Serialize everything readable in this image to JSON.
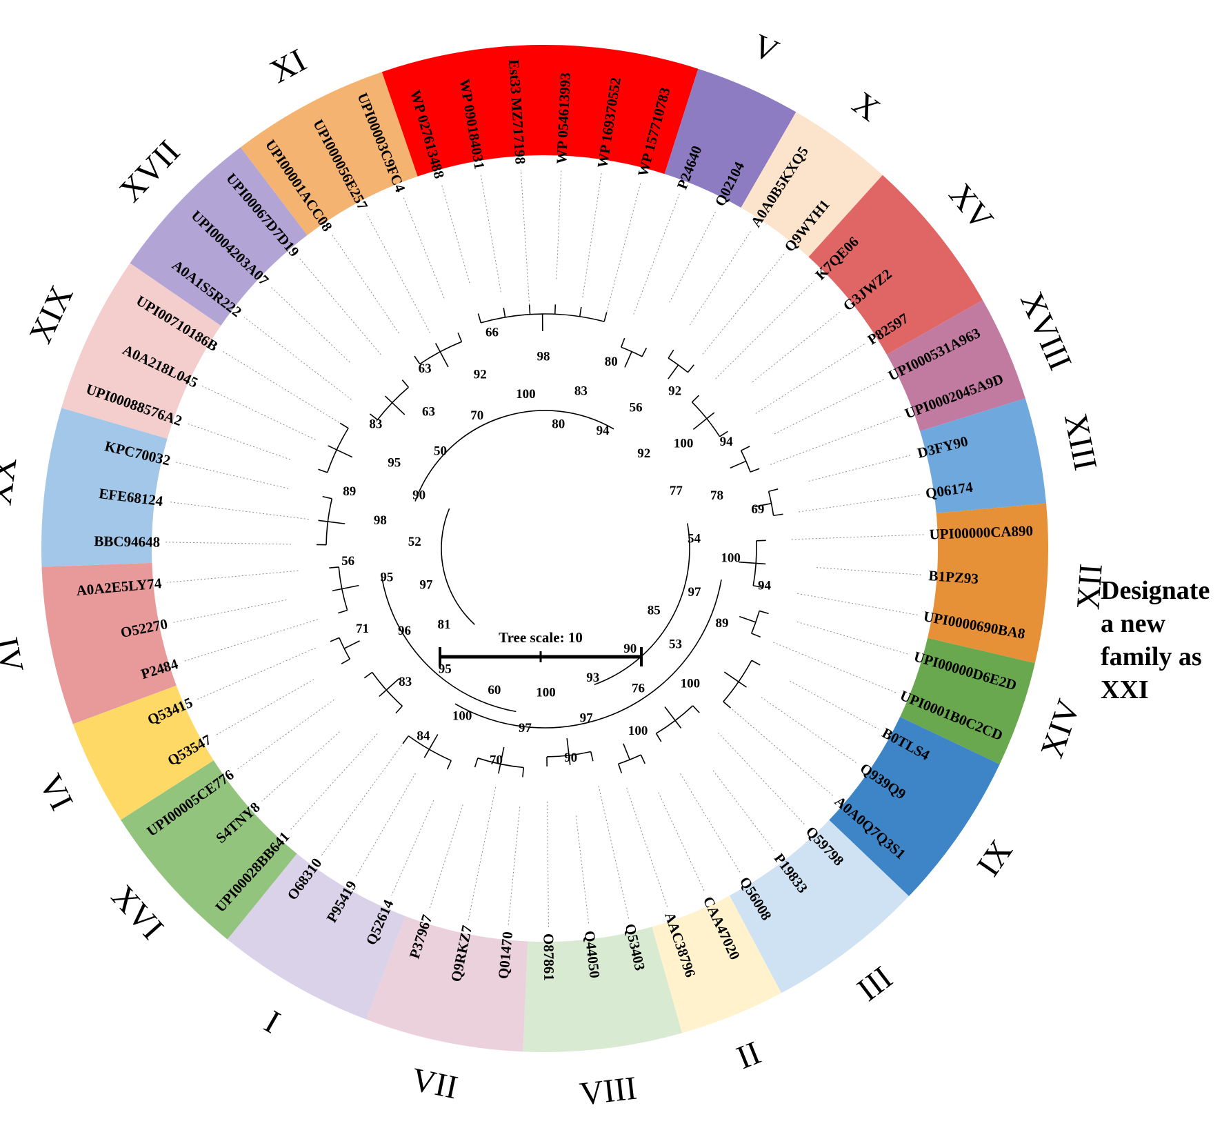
{
  "figure": {
    "scale_label": "Tree scale: 10",
    "annotation_lines": [
      "Designate",
      "a new",
      "family as",
      "XXI"
    ]
  },
  "families": [
    {
      "label": "IV",
      "color": "#E89A9A",
      "leaves": [
        "P2484",
        "O52270",
        "A0A2E5LY74"
      ]
    },
    {
      "label": "XX",
      "color": "#A3C7E8",
      "leaves": [
        "BBC94648",
        "EFE68124",
        "KPC70032"
      ]
    },
    {
      "label": "XIX",
      "color": "#F4CDCD",
      "leaves": [
        "UPI00088576A2",
        "A0A218L045",
        "UPI00710186B"
      ]
    },
    {
      "label": "XVII",
      "color": "#B3A4D6",
      "leaves": [
        "A0A1S5R222",
        "UPI0004203A07",
        "UPI00067D7D19"
      ]
    },
    {
      "label": "XI",
      "color": "#F4B370",
      "leaves": [
        "UPI00001ACC08",
        "UPI000056E257",
        "UPI00003C9FC4"
      ]
    },
    {
      "label": "",
      "color": "#FF0000",
      "leaves": [
        "WP 027613488",
        "WP 090184031",
        "Est33 MZ717198",
        "WP 054613993",
        "WP 169370552",
        "WP 157710783"
      ]
    },
    {
      "label": "V",
      "color": "#8E7CC3",
      "leaves": [
        "P24640",
        "Q02104"
      ]
    },
    {
      "label": "X",
      "color": "#FCE4CC",
      "leaves": [
        "A0A0B5KXQ5",
        "Q9WYH1"
      ]
    },
    {
      "label": "XV",
      "color": "#E06666",
      "leaves": [
        "K7QE06",
        "G3JWZ2",
        "P82597"
      ]
    },
    {
      "label": "XVIII",
      "color": "#C27BA0",
      "leaves": [
        "UPI000531A963",
        "UPI0002045A9D"
      ]
    },
    {
      "label": "XIII",
      "color": "#6FA8DC",
      "leaves": [
        "D3FY90",
        "Q06174"
      ]
    },
    {
      "label": "XII",
      "color": "#E69138",
      "leaves": [
        "UPI00000CA890",
        "B1PZ93",
        "UPI0000690BA8"
      ]
    },
    {
      "label": "XIV",
      "color": "#6AA84F",
      "leaves": [
        "UPI00000D6E2D",
        "UPI0001B0C2CD"
      ]
    },
    {
      "label": "IX",
      "color": "#3D85C6",
      "leaves": [
        "B0TLS4",
        "Q939Q9",
        "A0A0Q7Q3S1"
      ]
    },
    {
      "label": "III",
      "color": "#CFE2F3",
      "leaves": [
        "Q59798",
        "P19833",
        "Q56008"
      ]
    },
    {
      "label": "II",
      "color": "#FFF2CC",
      "leaves": [
        "CAA47020",
        "AAC38796"
      ]
    },
    {
      "label": "VIII",
      "color": "#D9EAD3",
      "leaves": [
        "Q53403",
        "Q44050",
        "O87861"
      ]
    },
    {
      "label": "VII",
      "color": "#EAD1DC",
      "leaves": [
        "Q01470",
        "Q9RKZ7",
        "P37967"
      ]
    },
    {
      "label": "I",
      "color": "#D9D2E9",
      "leaves": [
        "Q52614",
        "P95419",
        "O68310"
      ]
    },
    {
      "label": "XVI",
      "color": "#93C47D",
      "leaves": [
        "UPI00028BB641",
        "S4TNY8",
        "UPI00005CE776"
      ]
    },
    {
      "label": "VI",
      "color": "#FFD966",
      "leaves": [
        "Q53547",
        "Q53415"
      ]
    }
  ],
  "support_values": [
    "97",
    "95",
    "56",
    "52",
    "98",
    "89",
    "90",
    "95",
    "83",
    "50",
    "63",
    "63",
    "70",
    "92",
    "66",
    "100",
    "98",
    "80",
    "83",
    "80",
    "94",
    "56",
    "92",
    "92",
    "100",
    "94",
    "77",
    "78",
    "69",
    "54",
    "100",
    "94",
    "97",
    "89",
    "85",
    "53",
    "100",
    "90",
    "76",
    "100",
    "93",
    "97",
    "90",
    "100",
    "97",
    "70",
    "60",
    "100",
    "84",
    "95",
    "83",
    "81",
    "96",
    "71"
  ]
}
